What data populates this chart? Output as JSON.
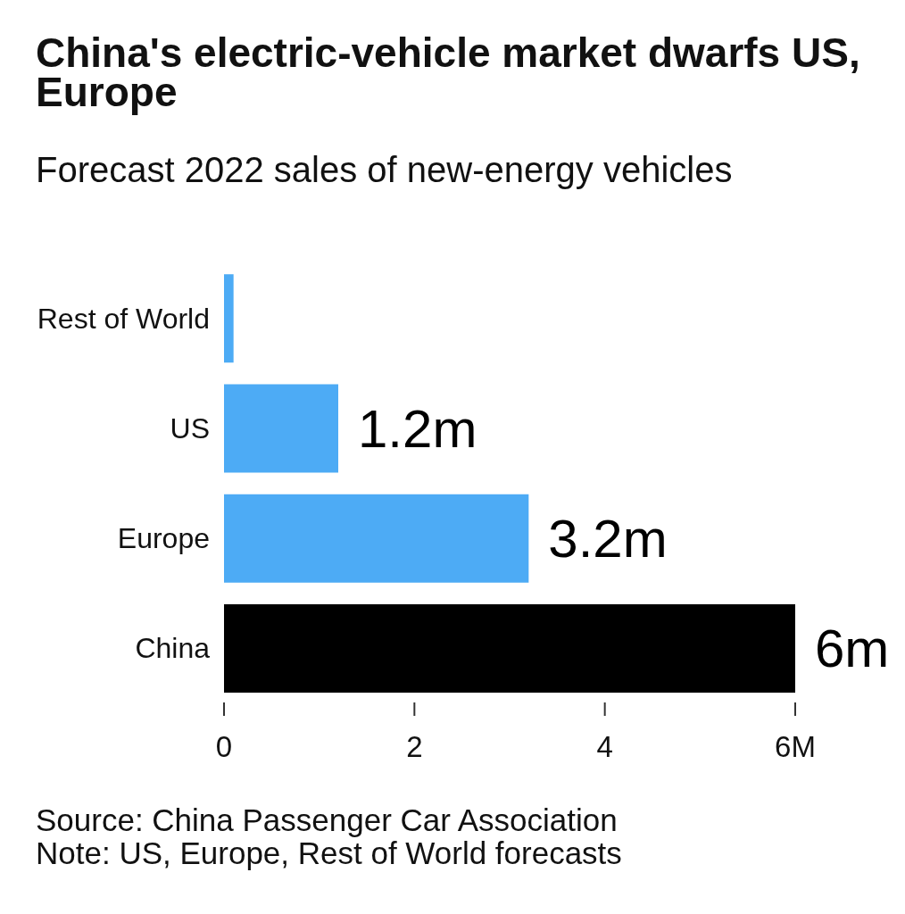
{
  "chart_data": {
    "type": "bar",
    "orientation": "horizontal",
    "title": "China's electric-vehicle market dwarfs US, Europe",
    "subtitle": "Forecast 2022 sales of new-energy vehicles",
    "categories": [
      "Rest of World",
      "US",
      "Europe",
      "China"
    ],
    "values": [
      0.1,
      1.2,
      3.2,
      6
    ],
    "colors": [
      "#4dabf5",
      "#4dabf5",
      "#4dabf5",
      "#000000"
    ],
    "value_labels": [
      null,
      "1.2m",
      "3.2m",
      "6m"
    ],
    "xlim": [
      0,
      6
    ],
    "xticks": [
      0,
      2,
      4,
      {
        "value": 6,
        "label": "6M"
      }
    ],
    "annotations": [
      "Source: China Passenger Car Association",
      "Note: US, Europe, Rest of World forecasts"
    ]
  }
}
